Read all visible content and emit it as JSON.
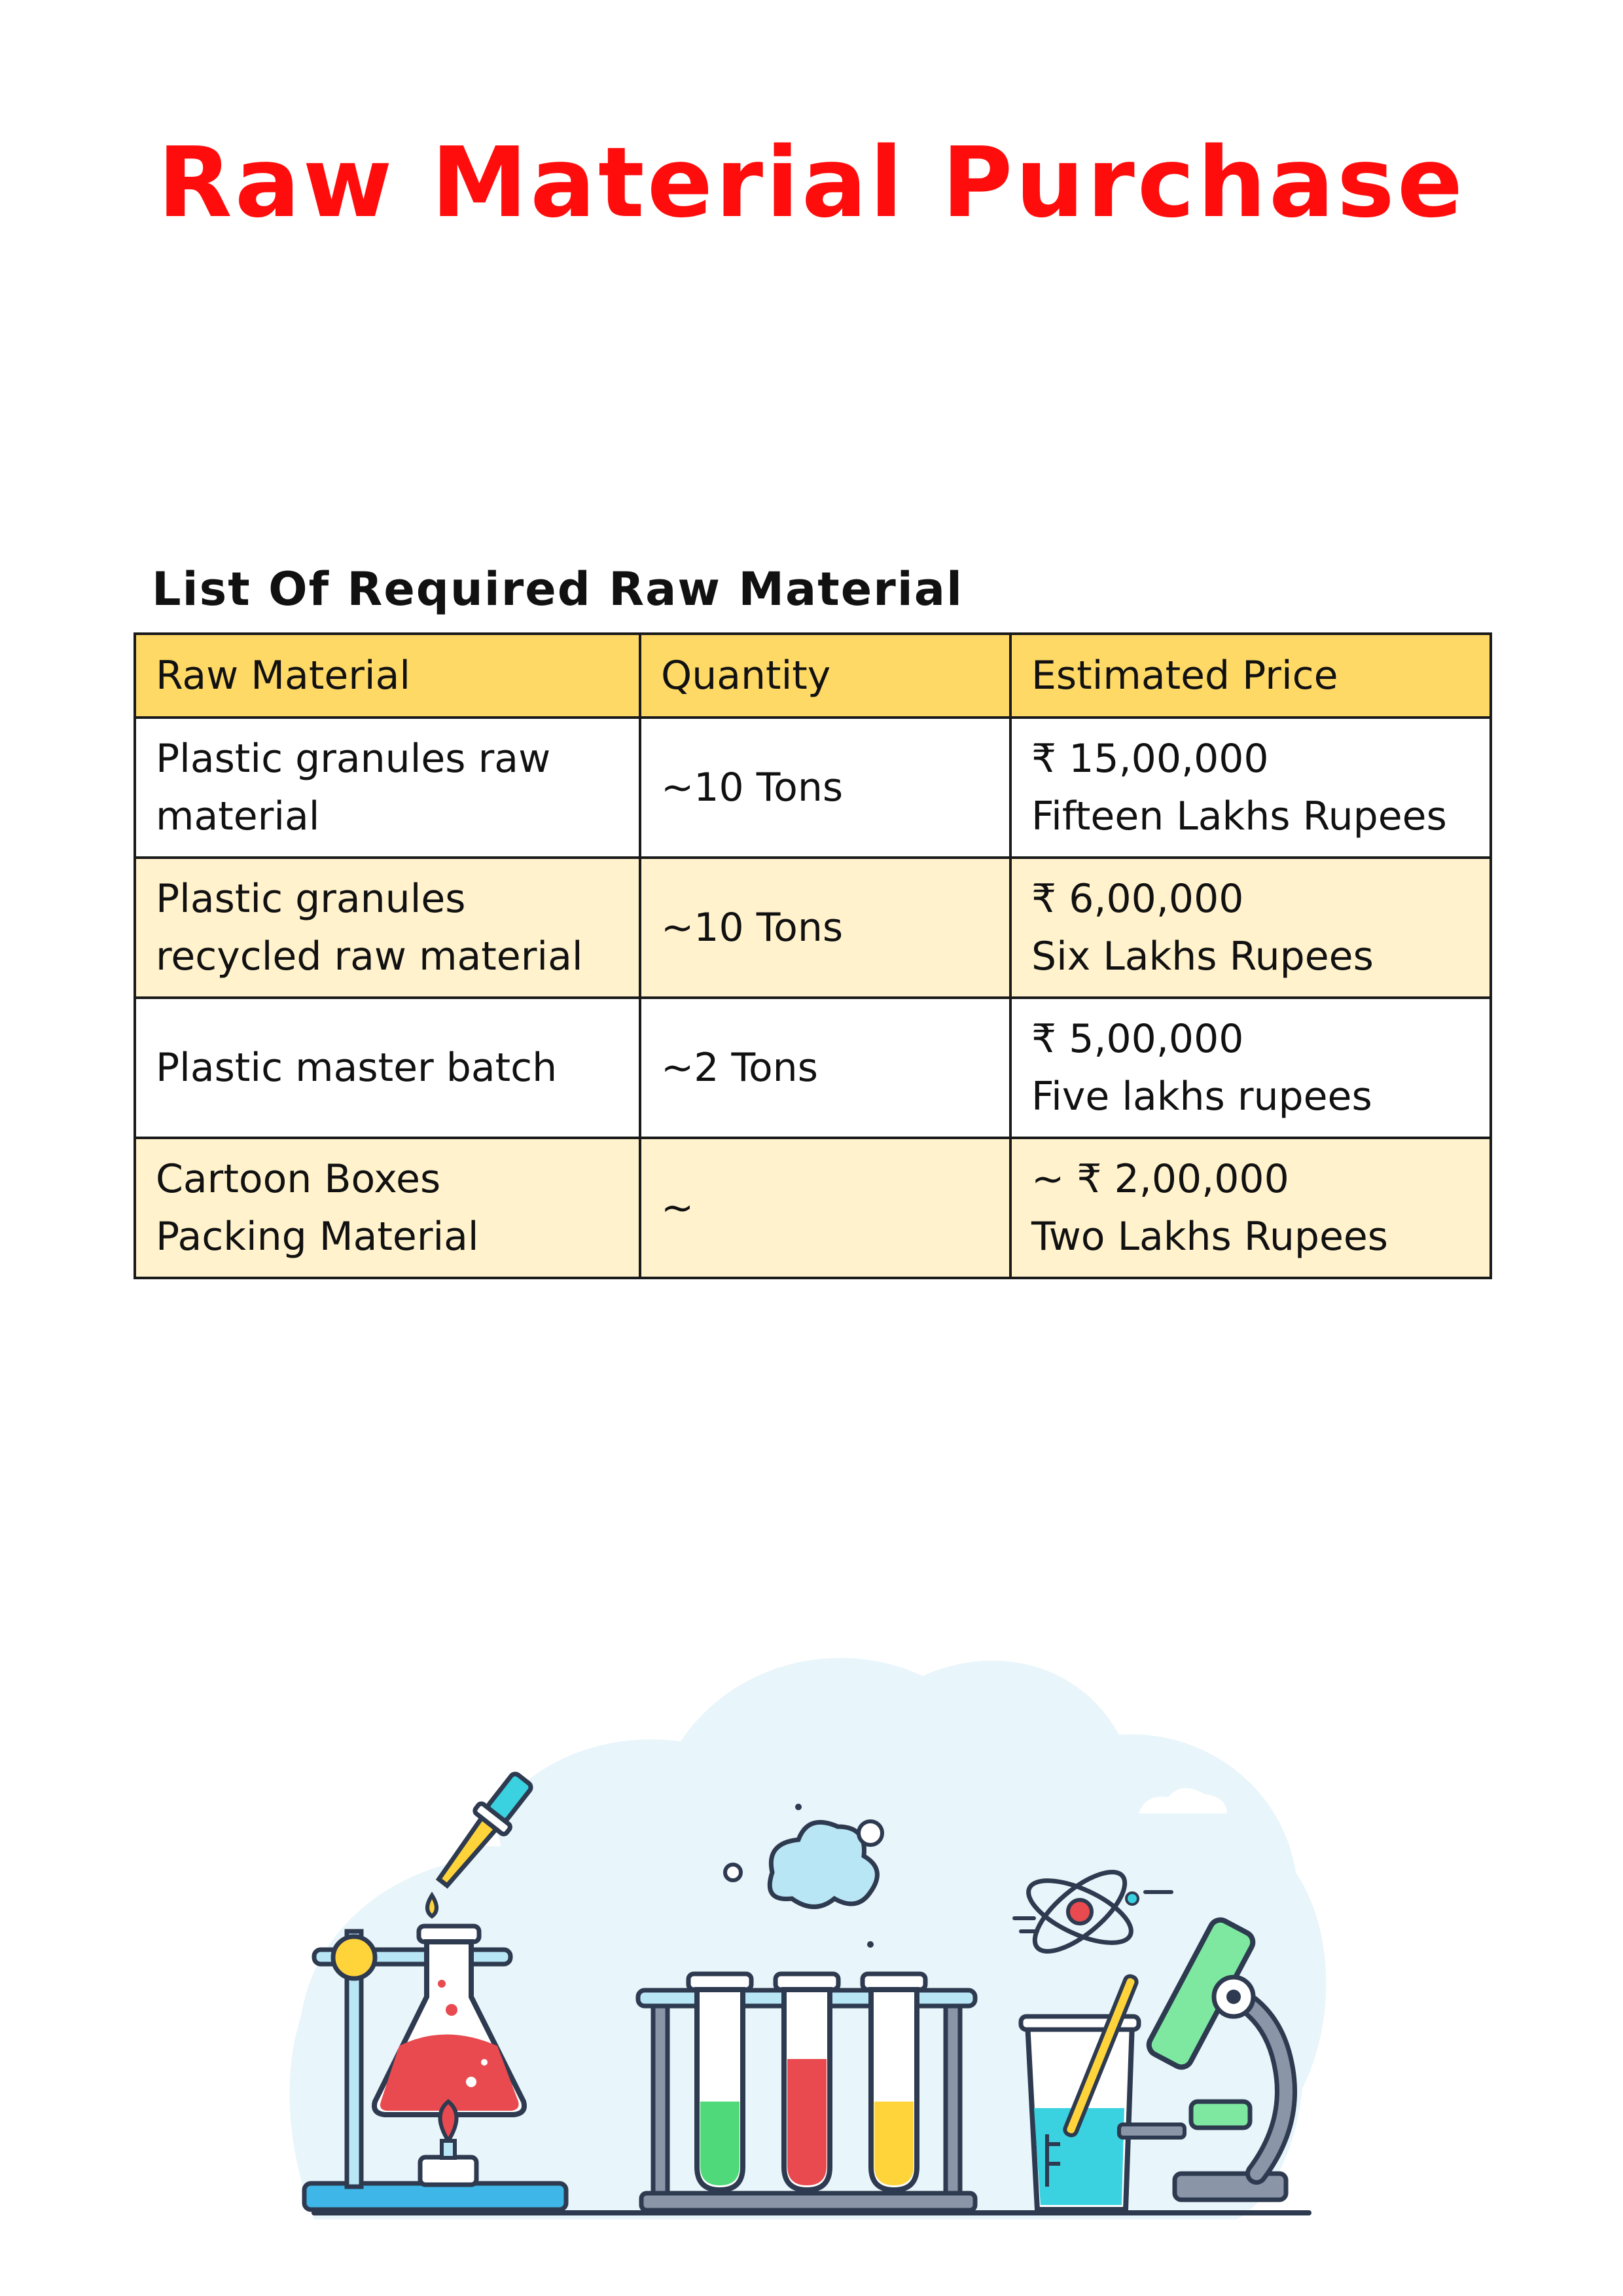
{
  "title": "Raw Material Purchase",
  "section_heading": "List Of Required Raw Material",
  "table": {
    "headers": [
      "Raw Material",
      "Quantity",
      "Estimated Price"
    ],
    "rows": [
      {
        "material": [
          "Plastic granules raw",
          "material"
        ],
        "quantity": "~10 Tons",
        "price": [
          "₹ 15,00,000",
          "Fifteen Lakhs Rupees"
        ]
      },
      {
        "material": [
          "Plastic granules",
          "recycled raw material"
        ],
        "quantity": "~10 Tons",
        "price": [
          "₹ 6,00,000",
          "Six Lakhs Rupees"
        ]
      },
      {
        "material": [
          "Plastic master batch"
        ],
        "quantity": "~2 Tons",
        "price": [
          "₹ 5,00,000",
          "Five lakhs rupees"
        ]
      },
      {
        "material": [
          "Cartoon Boxes",
          "Packing Material"
        ],
        "quantity": "~",
        "price": [
          "~ ₹ 2,00,000",
          "Two Lakhs Rupees"
        ]
      }
    ]
  },
  "illustration": {
    "icons": [
      "dropper-icon",
      "flask-icon",
      "burner-icon",
      "test-tube-rack-icon",
      "atom-icon",
      "beaker-icon",
      "microscope-icon"
    ],
    "colors": {
      "cloud": "#e8f5fa",
      "outline": "#2e3a4f",
      "red": "#e84a4f",
      "green": "#4fd97a",
      "yellow": "#ffd43b",
      "cyan": "#3ad1e0",
      "light_blue": "#b9e6f5",
      "mint": "#7ee8a1",
      "gray": "#8a95a8",
      "blue_base": "#3fb6e8"
    }
  }
}
